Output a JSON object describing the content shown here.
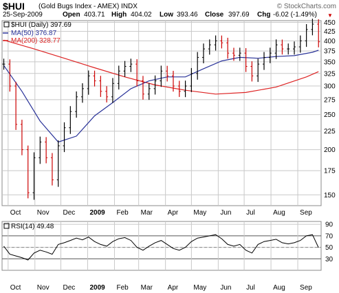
{
  "header": {
    "symbol": "$HUI",
    "name": "(Gold Bugs Index - AMEX) INDX",
    "watermark": "© StockCharts.com",
    "date": "25-Sep-2009",
    "open_label": "Open",
    "open_value": "403.71",
    "high_label": "High",
    "high_value": "404.02",
    "low_label": "Low",
    "low_value": "393.46",
    "close_label": "Close",
    "close_value": "397.69",
    "chg_label": "Chg",
    "chg_value": "-6.02 (-1.49%)",
    "chg_color": "#cc0000"
  },
  "legend": {
    "price": "$HUI (Daily) 397.69",
    "ma50": "MA(50) 376.87",
    "ma200": "MA(200) 328.77",
    "rsi": "RSI(14) 49.48"
  },
  "colors": {
    "up_bar": "#000000",
    "down_bar": "#cc0000",
    "ma50": "#2a3399",
    "ma200": "#dd2222",
    "grid": "#c8c8c8",
    "rsi_line": "#000000"
  },
  "chart_data": [
    {
      "type": "line",
      "title": "$HUI (Gold Bugs Index - AMEX) INDX",
      "x_tick_labels": [
        "Oct",
        "Nov",
        "Dec",
        "2009",
        "Feb",
        "Mar",
        "Apr",
        "May",
        "Jun",
        "Jul",
        "Aug",
        "Sep"
      ],
      "y_tick_labels": [
        150,
        175,
        200,
        225,
        250,
        275,
        300,
        325,
        350,
        375,
        400,
        425,
        450
      ],
      "ylim": [
        140,
        455
      ],
      "log_scale": true,
      "grid": true,
      "series": [
        {
          "name": "$HUI (Daily)",
          "style": "ohlc-bars",
          "x": [
            "2008-09-26",
            "2008-10-03",
            "2008-10-10",
            "2008-10-17",
            "2008-10-24",
            "2008-10-31",
            "2008-11-07",
            "2008-11-14",
            "2008-11-21",
            "2008-11-28",
            "2008-12-05",
            "2008-12-12",
            "2008-12-19",
            "2008-12-26",
            "2009-01-02",
            "2009-01-09",
            "2009-01-16",
            "2009-01-23",
            "2009-01-30",
            "2009-02-06",
            "2009-02-13",
            "2009-02-20",
            "2009-02-27",
            "2009-03-06",
            "2009-03-13",
            "2009-03-20",
            "2009-03-27",
            "2009-04-03",
            "2009-04-10",
            "2009-04-17",
            "2009-04-24",
            "2009-05-01",
            "2009-05-08",
            "2009-05-15",
            "2009-05-22",
            "2009-05-29",
            "2009-06-05",
            "2009-06-12",
            "2009-06-19",
            "2009-06-26",
            "2009-07-03",
            "2009-07-10",
            "2009-07-17",
            "2009-07-24",
            "2009-07-31",
            "2009-08-07",
            "2009-08-14",
            "2009-08-21",
            "2009-08-28",
            "2009-09-04",
            "2009-09-11",
            "2009-09-18",
            "2009-09-25"
          ],
          "values": [
            345,
            300,
            235,
            200,
            152,
            190,
            210,
            190,
            165,
            205,
            230,
            255,
            280,
            295,
            320,
            310,
            290,
            280,
            305,
            330,
            340,
            345,
            310,
            285,
            295,
            310,
            330,
            320,
            300,
            290,
            300,
            325,
            360,
            380,
            390,
            400,
            395,
            370,
            365,
            370,
            340,
            320,
            345,
            360,
            370,
            390,
            380,
            380,
            385,
            400,
            430,
            445,
            397.69
          ]
        },
        {
          "name": "MA(50)",
          "x": [
            "2008-09-26",
            "2008-10-17",
            "2008-11-07",
            "2008-11-28",
            "2008-12-19",
            "2009-01-09",
            "2009-01-30",
            "2009-02-20",
            "2009-03-13",
            "2009-04-03",
            "2009-04-24",
            "2009-05-15",
            "2009-06-05",
            "2009-06-26",
            "2009-07-17",
            "2009-08-07",
            "2009-08-28",
            "2009-09-18",
            "2009-09-25"
          ],
          "values": [
            342,
            290,
            240,
            210,
            218,
            248,
            270,
            295,
            310,
            318,
            318,
            335,
            352,
            360,
            358,
            362,
            364,
            372,
            376.87
          ]
        },
        {
          "name": "MA(200)",
          "x": [
            "2008-09-26",
            "2008-10-31",
            "2008-12-05",
            "2009-01-09",
            "2009-02-13",
            "2009-03-20",
            "2009-04-24",
            "2009-05-29",
            "2009-07-03",
            "2009-08-07",
            "2009-09-11",
            "2009-09-25"
          ],
          "values": [
            402,
            380,
            358,
            337,
            318,
            302,
            292,
            285,
            288,
            298,
            318,
            328.77
          ]
        }
      ]
    },
    {
      "type": "line",
      "title": "RSI(14) 49.48",
      "x_tick_labels": [
        "Oct",
        "Nov",
        "Dec",
        "2009",
        "Feb",
        "Mar",
        "Apr",
        "May",
        "Jun",
        "Jul",
        "Aug",
        "Sep"
      ],
      "y_tick_labels": [
        30,
        50,
        70,
        90
      ],
      "ylim": [
        10,
        95
      ],
      "grid": true,
      "series": [
        {
          "name": "RSI(14)",
          "x": [
            "2008-09-26",
            "2008-10-03",
            "2008-10-10",
            "2008-10-17",
            "2008-10-24",
            "2008-10-31",
            "2008-11-07",
            "2008-11-14",
            "2008-11-21",
            "2008-11-28",
            "2008-12-05",
            "2008-12-12",
            "2008-12-19",
            "2008-12-26",
            "2009-01-02",
            "2009-01-09",
            "2009-01-16",
            "2009-01-23",
            "2009-01-30",
            "2009-02-06",
            "2009-02-13",
            "2009-02-20",
            "2009-02-27",
            "2009-03-06",
            "2009-03-13",
            "2009-03-20",
            "2009-03-27",
            "2009-04-03",
            "2009-04-10",
            "2009-04-17",
            "2009-04-24",
            "2009-05-01",
            "2009-05-08",
            "2009-05-15",
            "2009-05-22",
            "2009-05-29",
            "2009-06-05",
            "2009-06-12",
            "2009-06-19",
            "2009-06-26",
            "2009-07-03",
            "2009-07-10",
            "2009-07-17",
            "2009-07-24",
            "2009-07-31",
            "2009-08-07",
            "2009-08-14",
            "2009-08-21",
            "2009-08-28",
            "2009-09-04",
            "2009-09-11",
            "2009-09-18",
            "2009-09-25"
          ],
          "values": [
            52,
            38,
            35,
            32,
            28,
            40,
            45,
            42,
            38,
            55,
            58,
            62,
            66,
            63,
            68,
            60,
            55,
            52,
            60,
            65,
            67,
            62,
            50,
            45,
            52,
            58,
            62,
            55,
            48,
            45,
            50,
            60,
            66,
            68,
            70,
            72,
            65,
            55,
            52,
            55,
            45,
            40,
            55,
            60,
            62,
            64,
            58,
            56,
            58,
            62,
            70,
            72,
            49.48
          ]
        }
      ]
    }
  ]
}
